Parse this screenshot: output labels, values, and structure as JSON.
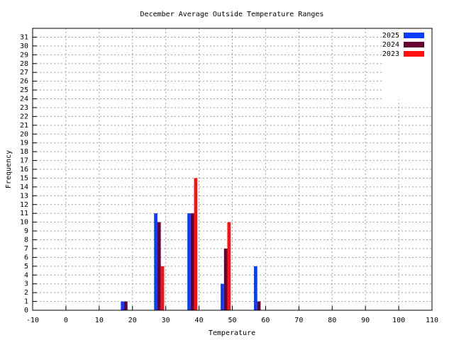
{
  "chart_data": {
    "type": "bar",
    "title": "December Average Outside Temperature Ranges",
    "x_label": "Temperature",
    "y_label": "Frequency",
    "x": [
      18,
      28,
      38,
      48,
      58
    ],
    "series": [
      {
        "name": "2025",
        "color": "#0a3cff",
        "values": [
          1,
          11,
          11,
          3,
          5
        ]
      },
      {
        "name": "2024",
        "color": "#640032",
        "values": [
          1,
          10,
          11,
          7,
          1
        ]
      },
      {
        "name": "2023",
        "color": "#ff1010",
        "values": [
          0,
          5,
          15,
          10,
          0
        ]
      }
    ],
    "xlim": [
      -10,
      110
    ],
    "xticks": [
      -10,
      0,
      10,
      20,
      30,
      40,
      50,
      60,
      70,
      80,
      90,
      100,
      110
    ],
    "ylim": [
      0,
      32
    ],
    "yticks": [
      0,
      1,
      2,
      3,
      4,
      5,
      6,
      7,
      8,
      9,
      10,
      11,
      12,
      13,
      14,
      15,
      16,
      17,
      18,
      19,
      20,
      21,
      22,
      23,
      24,
      25,
      26,
      27,
      28,
      29,
      30,
      31
    ],
    "grid": true,
    "legend": "top-right"
  }
}
